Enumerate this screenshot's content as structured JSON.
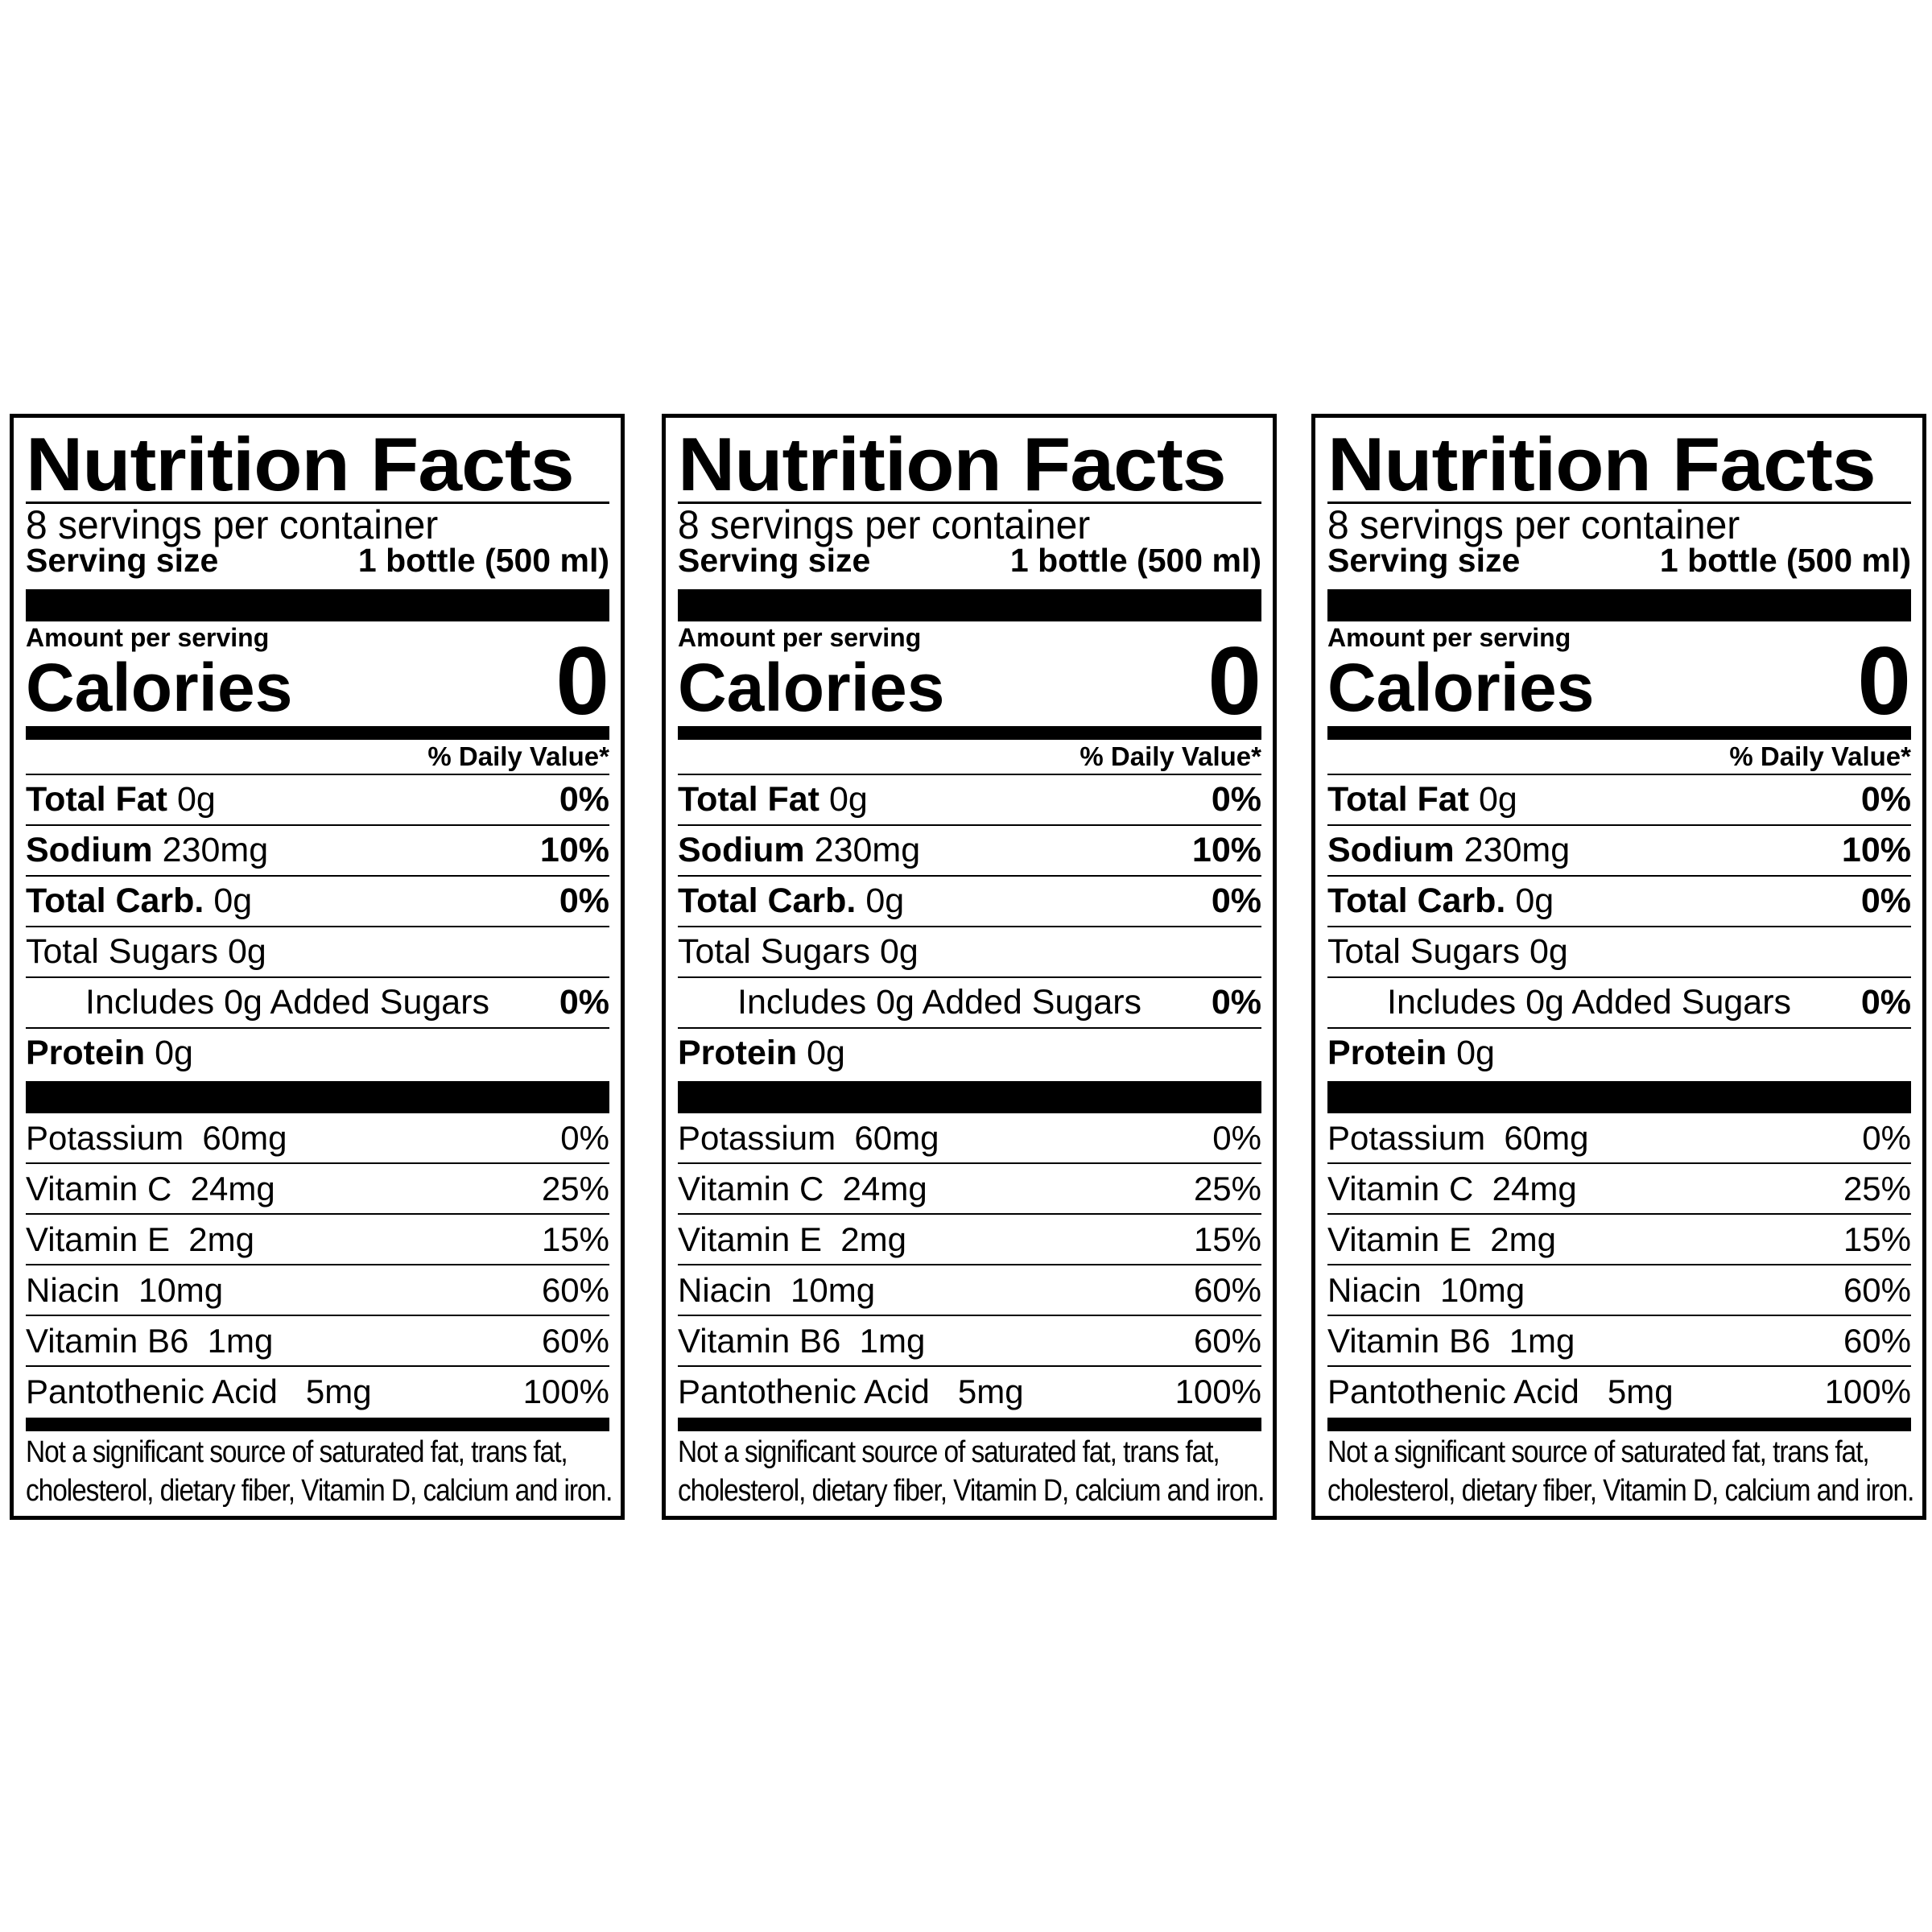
{
  "label": {
    "title": "Nutrition Facts",
    "servings_per_container": "8 servings per container",
    "serving_size_label": "Serving size",
    "serving_size_value": "1 bottle (500 ml)",
    "amount_per_serving": "Amount per serving",
    "calories_label": "Calories",
    "calories_value": "0",
    "daily_value_header": "% Daily Value*",
    "nutrients": [
      {
        "name": "Total Fat",
        "amount": "0g",
        "dv": "0%"
      },
      {
        "name": "Sodium",
        "amount": "230mg",
        "dv": "10%"
      },
      {
        "name": "Total Carb.",
        "amount": "0g",
        "dv": "0%"
      },
      {
        "name": "Total Sugars 0g",
        "amount": "",
        "dv": ""
      },
      {
        "name": "Includes 0g Added Sugars",
        "amount": "",
        "dv": "0%"
      },
      {
        "name": "Protein",
        "amount": "0g",
        "dv": ""
      }
    ],
    "micronutrients": [
      {
        "name": "Potassium  60mg",
        "dv": "0%"
      },
      {
        "name": "Vitamin C  24mg",
        "dv": "25%"
      },
      {
        "name": "Vitamin E  2mg",
        "dv": "15%"
      },
      {
        "name": "Niacin  10mg",
        "dv": "60%"
      },
      {
        "name": "Vitamin B6  1mg",
        "dv": "60%"
      },
      {
        "name": "Pantothenic Acid   5mg",
        "dv": "100%"
      }
    ],
    "footnote_line1": "Not a significant source of saturated fat, trans fat,",
    "footnote_line2": "cholesterol, dietary fiber, Vitamin D, calcium and iron."
  }
}
